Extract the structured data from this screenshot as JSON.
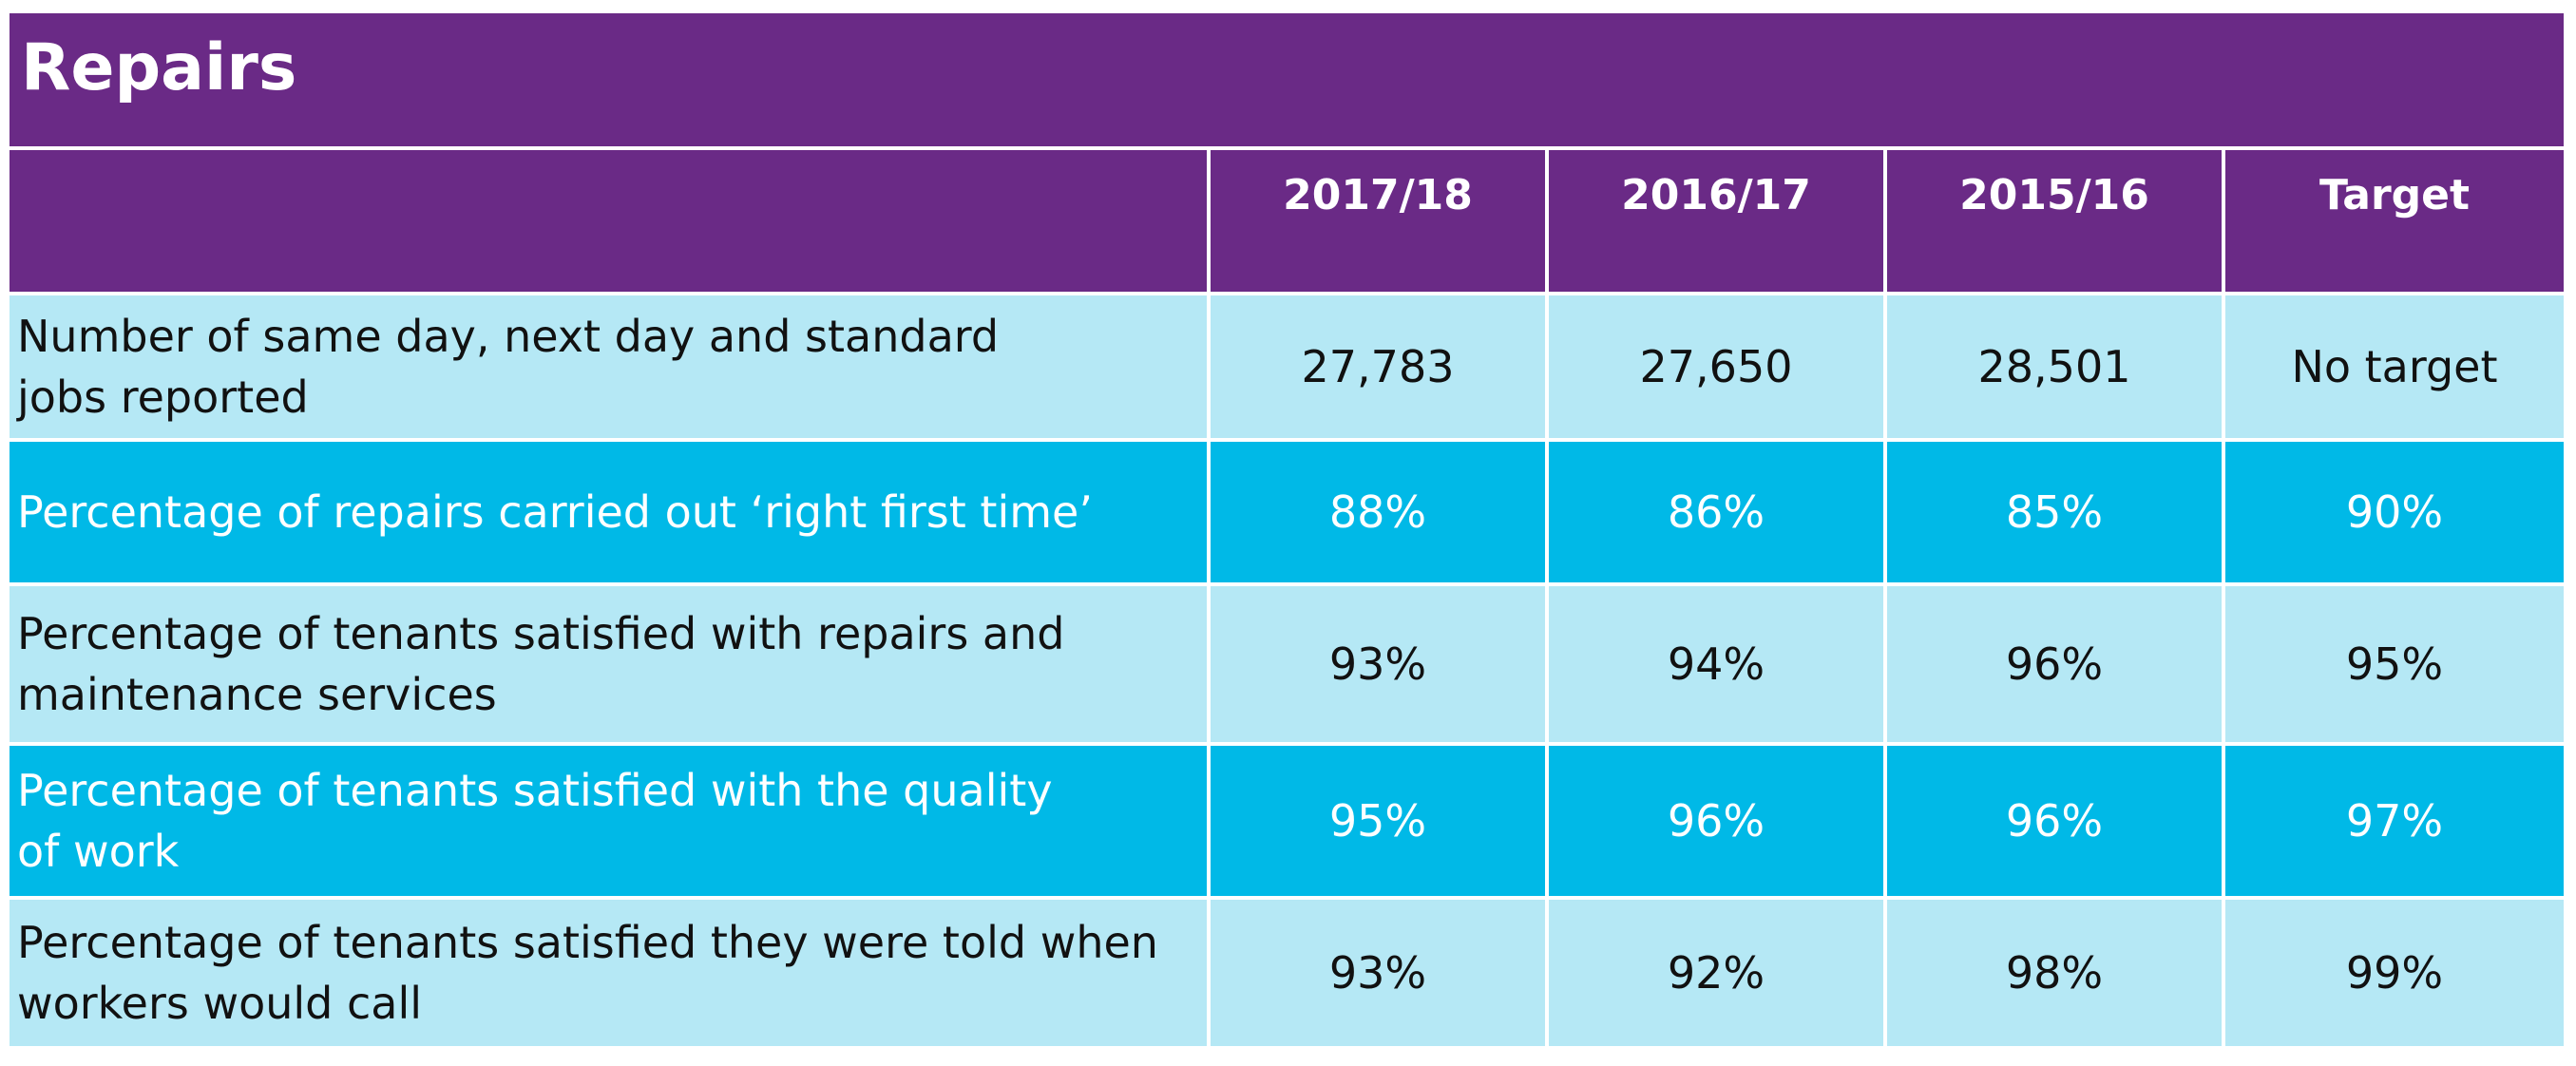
{
  "title": "Repairs",
  "columns": [
    "",
    "2017/18",
    "2016/17",
    "2015/16",
    "Target"
  ],
  "rows": [
    {
      "label": "Number of same day, next day and standard\njobs reported",
      "values": [
        "27,783",
        "27,650",
        "28,501",
        "No target"
      ]
    },
    {
      "label": "Percentage of repairs carried out ‘right first time’",
      "values": [
        "88%",
        "86%",
        "85%",
        "90%"
      ]
    },
    {
      "label": "Percentage of tenants satisfied with repairs and\nmaintenance services",
      "values": [
        "93%",
        "94%",
        "96%",
        "95%"
      ]
    },
    {
      "label": "Percentage of tenants satisfied with the quality\nof work",
      "values": [
        "95%",
        "96%",
        "96%",
        "97%"
      ]
    },
    {
      "label": "Percentage of tenants satisfied they were told when\nworkers would call",
      "values": [
        "93%",
        "92%",
        "98%",
        "99%"
      ]
    }
  ],
  "colors": {
    "header_purple": "#6a2a86",
    "row_light": "#b5e8f5",
    "row_dark": "#00b9e7",
    "text_dark": "#111111",
    "text_light": "#ffffff"
  }
}
